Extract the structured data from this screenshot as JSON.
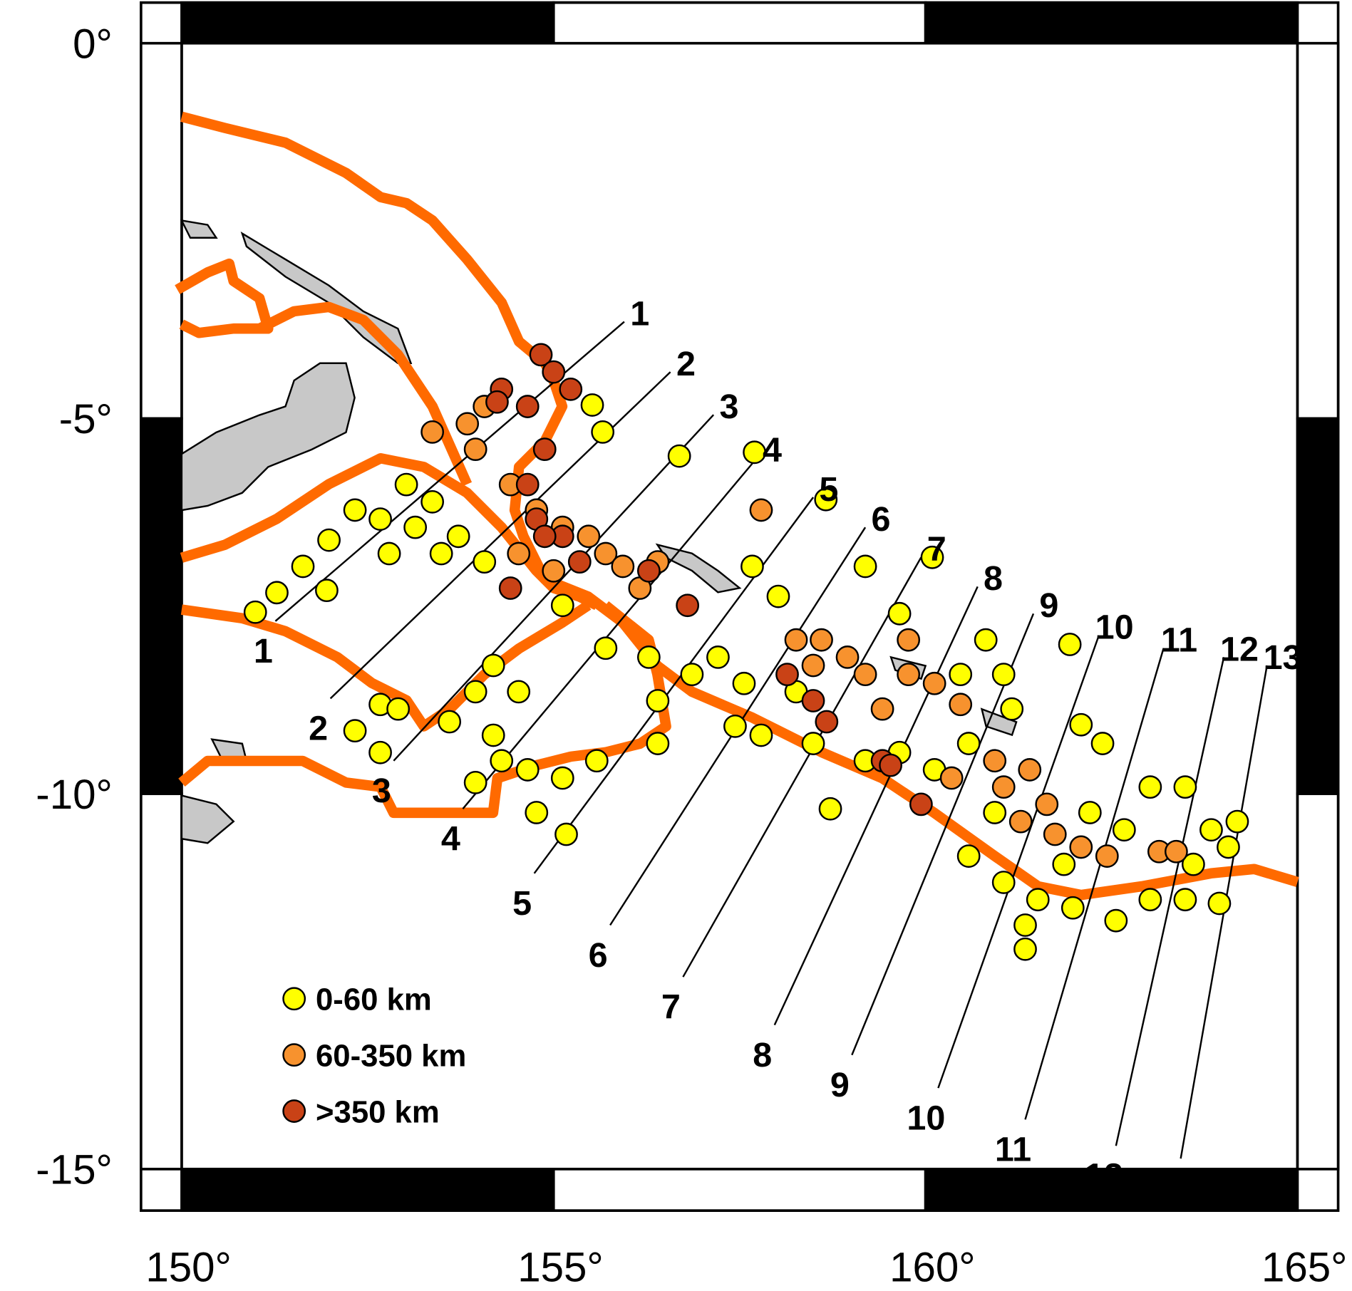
{
  "map": {
    "xlim": [
      150,
      165
    ],
    "ylim": [
      -15,
      0
    ],
    "xticks": [
      {
        "value": 150,
        "label": "150°"
      },
      {
        "value": 155,
        "label": "155°"
      },
      {
        "value": 160,
        "label": "160°"
      },
      {
        "value": 165,
        "label": "165°"
      }
    ],
    "yticks": [
      {
        "value": 0,
        "label": "0°"
      },
      {
        "value": -5,
        "label": "-5°"
      },
      {
        "value": -10,
        "label": "-10°"
      },
      {
        "value": -15,
        "label": "-15°"
      }
    ],
    "legend": [
      {
        "label": "0-60 km",
        "color": "#ffff00"
      },
      {
        "label": "60-350 km",
        "color": "#f7922e"
      },
      {
        "label": ">350 km",
        "color": "#c94216"
      }
    ],
    "profiles": [
      {
        "label": "1",
        "start": [
          151.26,
          -7.7
        ],
        "end": [
          155.95,
          -3.71
        ]
      },
      {
        "label": "2",
        "start": [
          152.0,
          -8.73
        ],
        "end": [
          156.57,
          -4.38
        ]
      },
      {
        "label": "3",
        "start": [
          152.85,
          -9.56
        ],
        "end": [
          157.15,
          -4.95
        ]
      },
      {
        "label": "4",
        "start": [
          153.78,
          -10.2
        ],
        "end": [
          157.73,
          -5.53
        ]
      },
      {
        "label": "5",
        "start": [
          154.74,
          -11.06
        ],
        "end": [
          158.49,
          -6.05
        ]
      },
      {
        "label": "6",
        "start": [
          155.76,
          -11.75
        ],
        "end": [
          159.19,
          -6.45
        ]
      },
      {
        "label": "7",
        "start": [
          156.74,
          -12.44
        ],
        "end": [
          159.94,
          -6.85
        ]
      },
      {
        "label": "8",
        "start": [
          157.97,
          -13.08
        ],
        "end": [
          160.7,
          -7.24
        ]
      },
      {
        "label": "9",
        "start": [
          159.01,
          -13.48
        ],
        "end": [
          161.45,
          -7.6
        ]
      },
      {
        "label": "10",
        "start": [
          160.17,
          -13.92
        ],
        "end": [
          162.33,
          -7.89
        ]
      },
      {
        "label": "11",
        "start": [
          161.34,
          -14.34
        ],
        "end": [
          163.2,
          -8.06
        ]
      },
      {
        "label": "12",
        "start": [
          162.56,
          -14.69
        ],
        "end": [
          164.01,
          -8.18
        ]
      },
      {
        "label": "13",
        "start": [
          163.43,
          -14.86
        ],
        "end": [
          164.59,
          -8.29
        ]
      }
    ],
    "events": [
      [
        152.33,
        -6.22,
        0
      ],
      [
        151.98,
        -6.62,
        0
      ],
      [
        151.63,
        -6.97,
        0
      ],
      [
        151.28,
        -7.32,
        0
      ],
      [
        150.99,
        -7.58,
        0
      ],
      [
        151.95,
        -7.29,
        0
      ],
      [
        152.67,
        -6.34,
        0
      ],
      [
        153.02,
        -5.88,
        0
      ],
      [
        153.37,
        -6.11,
        0
      ],
      [
        153.72,
        -6.57,
        0
      ],
      [
        154.07,
        -6.91,
        0
      ],
      [
        153.49,
        -6.8,
        0
      ],
      [
        152.79,
        -6.8,
        0
      ],
      [
        153.14,
        -6.45,
        0
      ],
      [
        155.52,
        -4.82,
        0
      ],
      [
        155.66,
        -5.18,
        0
      ],
      [
        156.69,
        -5.5,
        0
      ],
      [
        157.7,
        -5.45,
        0
      ],
      [
        158.66,
        -6.08,
        0
      ],
      [
        157.67,
        -6.97,
        0
      ],
      [
        159.19,
        -6.97,
        0
      ],
      [
        160.09,
        -6.85,
        0
      ],
      [
        152.67,
        -8.81,
        0
      ],
      [
        152.91,
        -8.87,
        0
      ],
      [
        152.33,
        -9.16,
        0
      ],
      [
        152.67,
        -9.45,
        0
      ],
      [
        153.6,
        -9.04,
        0
      ],
      [
        153.95,
        -8.64,
        0
      ],
      [
        154.19,
        -8.29,
        0
      ],
      [
        154.53,
        -8.64,
        0
      ],
      [
        154.19,
        -9.22,
        0
      ],
      [
        154.3,
        -9.56,
        0
      ],
      [
        153.95,
        -9.85,
        0
      ],
      [
        154.65,
        -9.68,
        0
      ],
      [
        155.12,
        -9.79,
        0
      ],
      [
        155.58,
        -9.56,
        0
      ],
      [
        155.17,
        -10.54,
        0
      ],
      [
        154.77,
        -10.25,
        0
      ],
      [
        155.12,
        -7.49,
        0
      ],
      [
        155.7,
        -8.06,
        0
      ],
      [
        156.28,
        -8.18,
        0
      ],
      [
        156.4,
        -8.76,
        0
      ],
      [
        156.4,
        -9.33,
        0
      ],
      [
        156.86,
        -8.41,
        0
      ],
      [
        157.21,
        -8.18,
        0
      ],
      [
        157.56,
        -8.53,
        0
      ],
      [
        157.44,
        -9.1,
        0
      ],
      [
        157.79,
        -9.22,
        0
      ],
      [
        158.02,
        -7.37,
        0
      ],
      [
        158.26,
        -8.64,
        0
      ],
      [
        158.49,
        -9.33,
        0
      ],
      [
        158.72,
        -10.2,
        0
      ],
      [
        159.19,
        -9.56,
        0
      ],
      [
        159.65,
        -9.45,
        0
      ],
      [
        160.12,
        -9.68,
        0
      ],
      [
        160.58,
        -9.33,
        0
      ],
      [
        160.81,
        -7.95,
        0
      ],
      [
        161.05,
        -8.41,
        0
      ],
      [
        161.16,
        -8.87,
        0
      ],
      [
        159.65,
        -7.6,
        0
      ],
      [
        160.47,
        -8.41,
        0
      ],
      [
        161.94,
        -8.01,
        0
      ],
      [
        162.09,
        -9.08,
        0
      ],
      [
        162.38,
        -9.33,
        0
      ],
      [
        160.93,
        -10.25,
        0
      ],
      [
        160.58,
        -10.83,
        0
      ],
      [
        161.05,
        -11.18,
        0
      ],
      [
        161.51,
        -11.41,
        0
      ],
      [
        161.98,
        -11.52,
        0
      ],
      [
        162.56,
        -11.69,
        0
      ],
      [
        163.02,
        -11.41,
        0
      ],
      [
        163.49,
        -11.41,
        0
      ],
      [
        163.95,
        -11.46,
        0
      ],
      [
        164.07,
        -10.71,
        0
      ],
      [
        164.19,
        -10.37,
        0
      ],
      [
        163.84,
        -10.48,
        0
      ],
      [
        163.49,
        -9.91,
        0
      ],
      [
        163.02,
        -9.91,
        0
      ],
      [
        162.67,
        -10.48,
        0
      ],
      [
        162.21,
        -10.25,
        0
      ],
      [
        161.34,
        -11.75,
        0
      ],
      [
        161.34,
        -12.07,
        0
      ],
      [
        161.86,
        -10.94,
        0
      ],
      [
        163.6,
        -10.94,
        0
      ],
      [
        153.84,
        -5.07,
        1
      ],
      [
        154.07,
        -4.84,
        1
      ],
      [
        153.37,
        -5.18,
        1
      ],
      [
        153.95,
        -5.41,
        1
      ],
      [
        154.42,
        -5.88,
        1
      ],
      [
        154.77,
        -6.22,
        1
      ],
      [
        155.12,
        -6.45,
        1
      ],
      [
        155.47,
        -6.57,
        1
      ],
      [
        155.7,
        -6.8,
        1
      ],
      [
        155.93,
        -6.97,
        1
      ],
      [
        156.16,
        -7.26,
        1
      ],
      [
        156.4,
        -6.91,
        1
      ],
      [
        155.0,
        -7.03,
        1
      ],
      [
        157.79,
        -6.22,
        1
      ],
      [
        158.26,
        -7.95,
        1
      ],
      [
        158.6,
        -7.95,
        1
      ],
      [
        158.49,
        -8.29,
        1
      ],
      [
        158.95,
        -8.18,
        1
      ],
      [
        159.19,
        -8.41,
        1
      ],
      [
        159.42,
        -8.87,
        1
      ],
      [
        159.77,
        -8.41,
        1
      ],
      [
        160.12,
        -8.53,
        1
      ],
      [
        160.47,
        -8.81,
        1
      ],
      [
        160.35,
        -9.79,
        1
      ],
      [
        160.93,
        -9.56,
        1
      ],
      [
        161.05,
        -9.91,
        1
      ],
      [
        161.4,
        -9.68,
        1
      ],
      [
        161.63,
        -10.14,
        1
      ],
      [
        161.28,
        -10.37,
        1
      ],
      [
        161.74,
        -10.54,
        1
      ],
      [
        162.09,
        -10.71,
        1
      ],
      [
        162.44,
        -10.83,
        1
      ],
      [
        163.14,
        -10.77,
        1
      ],
      [
        163.37,
        -10.77,
        1
      ],
      [
        159.77,
        -7.95,
        1
      ],
      [
        154.53,
        -6.8,
        1
      ],
      [
        154.83,
        -4.15,
        2
      ],
      [
        155.0,
        -4.38,
        2
      ],
      [
        155.23,
        -4.61,
        2
      ],
      [
        154.3,
        -4.61,
        2
      ],
      [
        154.24,
        -4.78,
        2
      ],
      [
        154.65,
        -4.84,
        2
      ],
      [
        154.88,
        -5.41,
        2
      ],
      [
        154.65,
        -5.88,
        2
      ],
      [
        154.77,
        -6.34,
        2
      ],
      [
        155.12,
        -6.57,
        2
      ],
      [
        154.88,
        -6.57,
        2
      ],
      [
        154.42,
        -7.26,
        2
      ],
      [
        155.35,
        -6.91,
        2
      ],
      [
        156.28,
        -7.03,
        2
      ],
      [
        156.8,
        -7.49,
        2
      ],
      [
        158.14,
        -8.41,
        2
      ],
      [
        158.49,
        -8.76,
        2
      ],
      [
        158.67,
        -9.04,
        2
      ],
      [
        159.42,
        -9.56,
        2
      ],
      [
        159.53,
        -9.62,
        2
      ],
      [
        159.94,
        -10.14,
        2
      ]
    ]
  }
}
